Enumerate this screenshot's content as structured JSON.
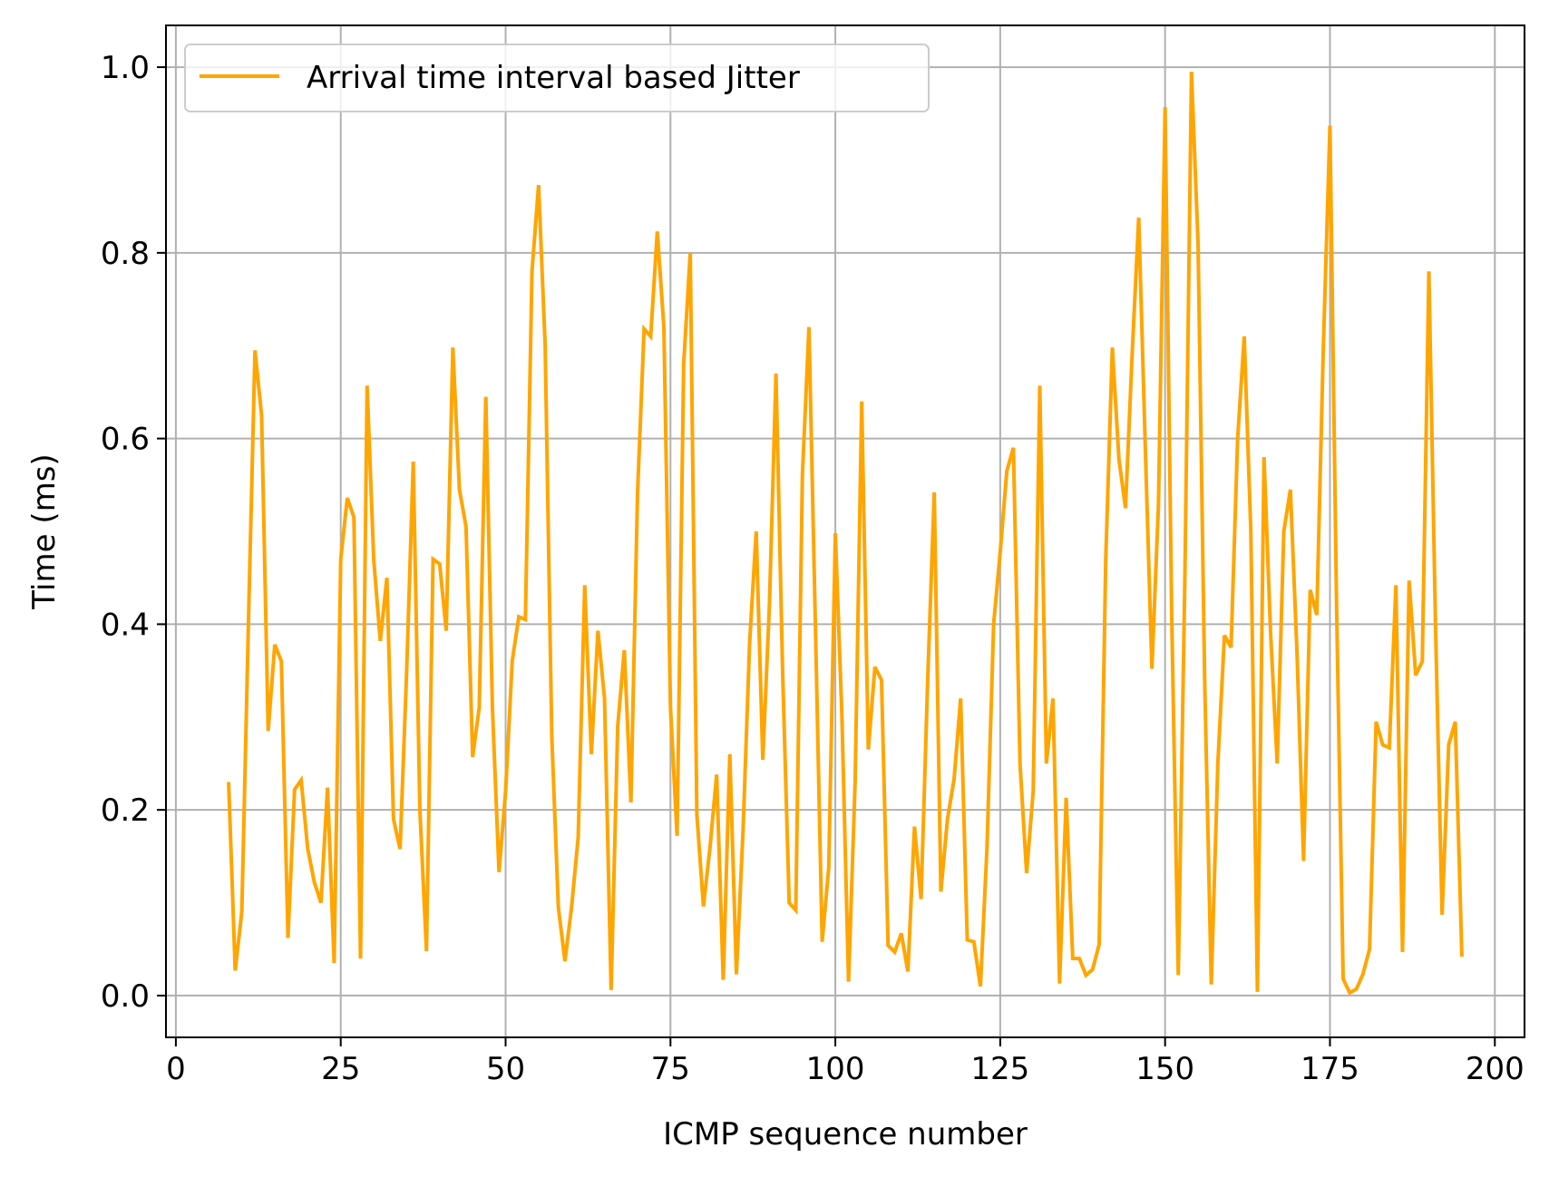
{
  "chart_data": {
    "type": "line",
    "title": "",
    "xlabel": "ICMP sequence number",
    "ylabel": "Time (ms)",
    "xlim": [
      -1.5,
      204.5
    ],
    "ylim": [
      -0.045,
      1.045
    ],
    "xticks": [
      0,
      25,
      50,
      75,
      100,
      125,
      150,
      175,
      200
    ],
    "xtick_labels": [
      "0",
      "25",
      "50",
      "75",
      "100",
      "125",
      "150",
      "175",
      "200"
    ],
    "yticks": [
      0.0,
      0.2,
      0.4,
      0.6,
      0.8,
      1.0
    ],
    "ytick_labels": [
      "0.0",
      "0.2",
      "0.4",
      "0.6",
      "0.8",
      "1.0"
    ],
    "grid": true,
    "legend_position": "upper-left",
    "series": [
      {
        "name": "Arrival time interval based Jitter",
        "color": "#ffa500",
        "x": [
          8,
          9,
          10,
          11,
          12,
          13,
          14,
          15,
          16,
          17,
          18,
          19,
          20,
          21,
          22,
          23,
          24,
          25,
          26,
          27,
          28,
          29,
          30,
          31,
          32,
          33,
          34,
          35,
          36,
          37,
          38,
          39,
          40,
          41,
          42,
          43,
          44,
          45,
          46,
          47,
          48,
          49,
          50,
          51,
          52,
          53,
          54,
          55,
          56,
          57,
          58,
          59,
          60,
          61,
          62,
          63,
          64,
          65,
          66,
          67,
          68,
          69,
          70,
          71,
          72,
          73,
          74,
          75,
          76,
          77,
          78,
          79,
          80,
          81,
          82,
          83,
          84,
          85,
          86,
          87,
          88,
          89,
          90,
          91,
          92,
          93,
          94,
          95,
          96,
          97,
          98,
          99,
          100,
          101,
          102,
          103,
          104,
          105,
          106,
          107,
          108,
          109,
          110,
          111,
          112,
          113,
          114,
          115,
          116,
          117,
          118,
          119,
          120,
          121,
          122,
          123,
          124,
          125,
          126,
          127,
          128,
          129,
          130,
          131,
          132,
          133,
          134,
          135,
          136,
          137,
          138,
          139,
          140,
          141,
          142,
          143,
          144,
          145,
          146,
          147,
          148,
          149,
          150,
          151,
          152,
          153,
          154,
          155,
          156,
          157,
          158,
          159,
          160,
          161,
          162,
          163,
          164,
          165,
          166,
          167,
          168,
          169,
          170,
          171,
          172,
          173,
          174,
          175,
          176,
          177,
          178,
          179,
          180,
          181,
          182,
          183,
          184,
          185,
          186,
          187,
          188,
          189,
          190,
          191,
          192,
          193,
          194,
          195
        ],
        "values": [
          0.23,
          0.027,
          0.09,
          0.4,
          0.695,
          0.625,
          0.285,
          0.378,
          0.36,
          0.062,
          0.222,
          0.232,
          0.158,
          0.122,
          0.1,
          0.224,
          0.035,
          0.47,
          0.536,
          0.515,
          0.04,
          0.657,
          0.47,
          0.382,
          0.45,
          0.19,
          0.158,
          0.35,
          0.575,
          0.2,
          0.048,
          0.47,
          0.465,
          0.393,
          0.698,
          0.545,
          0.505,
          0.257,
          0.31,
          0.645,
          0.31,
          0.133,
          0.22,
          0.36,
          0.408,
          0.405,
          0.78,
          0.873,
          0.7,
          0.28,
          0.095,
          0.037,
          0.095,
          0.17,
          0.442,
          0.26,
          0.393,
          0.32,
          0.006,
          0.29,
          0.372,
          0.208,
          0.54,
          0.718,
          0.71,
          0.823,
          0.72,
          0.31,
          0.172,
          0.68,
          0.8,
          0.195,
          0.096,
          0.16,
          0.238,
          0.017,
          0.26,
          0.023,
          0.177,
          0.38,
          0.5,
          0.254,
          0.42,
          0.67,
          0.35,
          0.1,
          0.092,
          0.56,
          0.72,
          0.39,
          0.058,
          0.138,
          0.498,
          0.3,
          0.015,
          0.23,
          0.64,
          0.265,
          0.354,
          0.34,
          0.054,
          0.047,
          0.067,
          0.026,
          0.182,
          0.104,
          0.34,
          0.542,
          0.112,
          0.19,
          0.233,
          0.32,
          0.06,
          0.058,
          0.01,
          0.16,
          0.4,
          0.478,
          0.565,
          0.59,
          0.25,
          0.132,
          0.22,
          0.657,
          0.25,
          0.32,
          0.013,
          0.213,
          0.04,
          0.04,
          0.022,
          0.028,
          0.055,
          0.47,
          0.698,
          0.578,
          0.525,
          0.69,
          0.838,
          0.59,
          0.352,
          0.53,
          0.957,
          0.41,
          0.022,
          0.45,
          0.995,
          0.81,
          0.34,
          0.012,
          0.25,
          0.388,
          0.375,
          0.6,
          0.71,
          0.5,
          0.004,
          0.58,
          0.39,
          0.25,
          0.5,
          0.545,
          0.37,
          0.145,
          0.437,
          0.41,
          0.7,
          0.937,
          0.42,
          0.018,
          0.003,
          0.007,
          0.023,
          0.05,
          0.295,
          0.27,
          0.267,
          0.442,
          0.047,
          0.447,
          0.345,
          0.36,
          0.78,
          0.4,
          0.087,
          0.27,
          0.295,
          0.042
        ]
      }
    ]
  }
}
